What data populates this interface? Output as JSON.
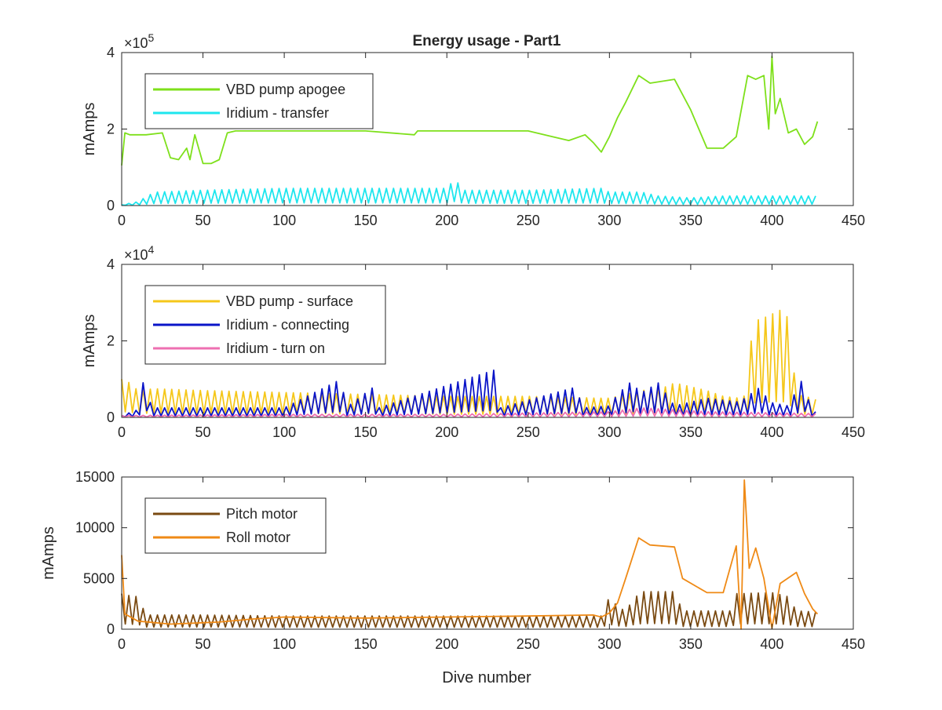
{
  "figure": {
    "title": "Energy usage - Part1",
    "xlabel": "Dive number"
  },
  "chart_data": [
    {
      "type": "line",
      "title": "Energy usage - Part1",
      "xlabel": "",
      "ylabel": "mAmps",
      "exponent_base": "×10",
      "exponent_power": "5",
      "xlim": [
        0,
        450
      ],
      "ylim": [
        0,
        4
      ],
      "x_ticks": [
        0,
        50,
        100,
        150,
        200,
        250,
        300,
        350,
        400,
        450
      ],
      "y_ticks": [
        0,
        2,
        4
      ],
      "grid": false,
      "legend_position": "top-left",
      "series": [
        {
          "name": "VBD pump apogee",
          "color": "#7ee01b",
          "points": [
            [
              0,
              1.05
            ],
            [
              2,
              1.9
            ],
            [
              5,
              1.85
            ],
            [
              15,
              1.85
            ],
            [
              25,
              1.9
            ],
            [
              30,
              1.25
            ],
            [
              35,
              1.2
            ],
            [
              40,
              1.5
            ],
            [
              42,
              1.2
            ],
            [
              45,
              1.85
            ],
            [
              50,
              1.1
            ],
            [
              55,
              1.1
            ],
            [
              60,
              1.2
            ],
            [
              65,
              1.9
            ],
            [
              70,
              1.95
            ],
            [
              100,
              1.95
            ],
            [
              150,
              1.95
            ],
            [
              180,
              1.85
            ],
            [
              182,
              1.95
            ],
            [
              200,
              1.95
            ],
            [
              250,
              1.95
            ],
            [
              265,
              1.8
            ],
            [
              275,
              1.7
            ],
            [
              285,
              1.85
            ],
            [
              290,
              1.65
            ],
            [
              295,
              1.4
            ],
            [
              300,
              1.8
            ],
            [
              305,
              2.3
            ],
            [
              310,
              2.7
            ],
            [
              318,
              3.4
            ],
            [
              325,
              3.2
            ],
            [
              340,
              3.3
            ],
            [
              350,
              2.5
            ],
            [
              360,
              1.5
            ],
            [
              370,
              1.5
            ],
            [
              378,
              1.8
            ],
            [
              385,
              3.4
            ],
            [
              390,
              3.3
            ],
            [
              395,
              3.4
            ],
            [
              398,
              2.0
            ],
            [
              400,
              3.9
            ],
            [
              402,
              2.4
            ],
            [
              405,
              2.8
            ],
            [
              410,
              1.9
            ],
            [
              415,
              2.0
            ],
            [
              420,
              1.6
            ],
            [
              425,
              1.8
            ],
            [
              428,
              2.2
            ]
          ]
        },
        {
          "name": "Iridium - transfer",
          "color": "#1ee6ee",
          "points": [
            [
              0,
              0.02
            ],
            [
              10,
              0.1
            ],
            [
              20,
              0.35
            ],
            [
              50,
              0.4
            ],
            [
              100,
              0.45
            ],
            [
              150,
              0.45
            ],
            [
              200,
              0.45
            ],
            [
              205,
              0.7
            ],
            [
              210,
              0.4
            ],
            [
              250,
              0.4
            ],
            [
              295,
              0.45
            ],
            [
              300,
              0.35
            ],
            [
              320,
              0.35
            ],
            [
              330,
              0.25
            ],
            [
              350,
              0.2
            ],
            [
              370,
              0.25
            ],
            [
              380,
              0.25
            ],
            [
              400,
              0.25
            ],
            [
              420,
              0.25
            ],
            [
              428,
              0.25
            ]
          ],
          "oscillating": true
        }
      ]
    },
    {
      "type": "line",
      "xlabel": "",
      "ylabel": "mAmps",
      "exponent_base": "×10",
      "exponent_power": "4",
      "xlim": [
        0,
        450
      ],
      "ylim": [
        0,
        4
      ],
      "x_ticks": [
        0,
        50,
        100,
        150,
        200,
        250,
        300,
        350,
        400,
        450
      ],
      "y_ticks": [
        0,
        2,
        4
      ],
      "grid": false,
      "legend_position": "top-left",
      "series": [
        {
          "name": "VBD pump - surface",
          "color": "#f5c71a",
          "points": [
            [
              0,
              1.0
            ],
            [
              5,
              0.9
            ],
            [
              10,
              0.7
            ],
            [
              20,
              0.75
            ],
            [
              50,
              0.7
            ],
            [
              100,
              0.65
            ],
            [
              150,
              0.6
            ],
            [
              200,
              0.55
            ],
            [
              250,
              0.55
            ],
            [
              295,
              0.5
            ],
            [
              300,
              0.5
            ],
            [
              320,
              0.7
            ],
            [
              335,
              0.8
            ],
            [
              340,
              0.9
            ],
            [
              350,
              0.8
            ],
            [
              360,
              0.7
            ],
            [
              370,
              0.55
            ],
            [
              380,
              0.5
            ],
            [
              385,
              0.6
            ],
            [
              388,
              2.5
            ],
            [
              395,
              2.6
            ],
            [
              400,
              2.7
            ],
            [
              405,
              2.8
            ],
            [
              410,
              2.6
            ],
            [
              415,
              0.6
            ],
            [
              425,
              0.5
            ],
            [
              428,
              0.45
            ]
          ],
          "oscillating": true
        },
        {
          "name": "Iridium - connecting",
          "color": "#0a14c8",
          "points": [
            [
              0,
              0.05
            ],
            [
              10,
              0.2
            ],
            [
              15,
              1.3
            ],
            [
              18,
              0.25
            ],
            [
              100,
              0.25
            ],
            [
              135,
              1.0
            ],
            [
              138,
              0.25
            ],
            [
              155,
              0.8
            ],
            [
              158,
              0.25
            ],
            [
              230,
              1.25
            ],
            [
              233,
              0.25
            ],
            [
              280,
              0.8
            ],
            [
              283,
              0.25
            ],
            [
              300,
              0.3
            ],
            [
              305,
              0.6
            ],
            [
              315,
              1.0
            ],
            [
              318,
              0.6
            ],
            [
              330,
              0.9
            ],
            [
              340,
              0.3
            ],
            [
              360,
              0.5
            ],
            [
              380,
              0.4
            ],
            [
              393,
              0.8
            ],
            [
              398,
              0.4
            ],
            [
              410,
              0.3
            ],
            [
              420,
              1.1
            ],
            [
              423,
              0.3
            ],
            [
              428,
              0.1
            ]
          ],
          "oscillating": true
        },
        {
          "name": "Iridium - turn on",
          "color": "#ee6fb1",
          "points": [
            [
              0,
              0.05
            ],
            [
              100,
              0.08
            ],
            [
              200,
              0.08
            ],
            [
              300,
              0.15
            ],
            [
              320,
              0.25
            ],
            [
              340,
              0.2
            ],
            [
              360,
              0.15
            ],
            [
              400,
              0.12
            ],
            [
              428,
              0.1
            ]
          ],
          "oscillating": true
        }
      ]
    },
    {
      "type": "line",
      "xlabel": "Dive number",
      "ylabel": "mAmps",
      "xlim": [
        0,
        450
      ],
      "ylim": [
        0,
        15000
      ],
      "x_ticks": [
        0,
        50,
        100,
        150,
        200,
        250,
        300,
        350,
        400,
        450
      ],
      "y_ticks": [
        0,
        5000,
        10000,
        15000
      ],
      "grid": false,
      "legend_position": "top-left",
      "series": [
        {
          "name": "Pitch motor",
          "color": "#7a4a12",
          "points": [
            [
              0,
              3500
            ],
            [
              5,
              3300
            ],
            [
              10,
              3200
            ],
            [
              15,
              1400
            ],
            [
              50,
              1400
            ],
            [
              100,
              1300
            ],
            [
              150,
              1300
            ],
            [
              200,
              1300
            ],
            [
              250,
              1300
            ],
            [
              295,
              1300
            ],
            [
              300,
              3200
            ],
            [
              305,
              2200
            ],
            [
              310,
              1800
            ],
            [
              315,
              3000
            ],
            [
              320,
              3700
            ],
            [
              340,
              3700
            ],
            [
              345,
              1800
            ],
            [
              360,
              1800
            ],
            [
              375,
              1800
            ],
            [
              378,
              3500
            ],
            [
              400,
              3600
            ],
            [
              410,
              3200
            ],
            [
              415,
              1800
            ],
            [
              428,
              1700
            ]
          ],
          "oscillating": true
        },
        {
          "name": "Roll motor",
          "color": "#ef8a16",
          "points": [
            [
              0,
              7300
            ],
            [
              2,
              1500
            ],
            [
              10,
              800
            ],
            [
              30,
              500
            ],
            [
              60,
              700
            ],
            [
              80,
              1000
            ],
            [
              100,
              1200
            ],
            [
              150,
              1100
            ],
            [
              200,
              1200
            ],
            [
              250,
              1300
            ],
            [
              290,
              1400
            ],
            [
              295,
              1200
            ],
            [
              300,
              1600
            ],
            [
              305,
              2600
            ],
            [
              310,
              5000
            ],
            [
              318,
              9000
            ],
            [
              325,
              8300
            ],
            [
              340,
              8100
            ],
            [
              345,
              5000
            ],
            [
              360,
              3600
            ],
            [
              370,
              3600
            ],
            [
              378,
              8200
            ],
            [
              381,
              0
            ],
            [
              383,
              14700
            ],
            [
              386,
              6000
            ],
            [
              390,
              8000
            ],
            [
              395,
              5000
            ],
            [
              400,
              100
            ],
            [
              405,
              4500
            ],
            [
              415,
              5600
            ],
            [
              420,
              3500
            ],
            [
              425,
              2000
            ],
            [
              428,
              1500
            ]
          ]
        }
      ]
    }
  ]
}
